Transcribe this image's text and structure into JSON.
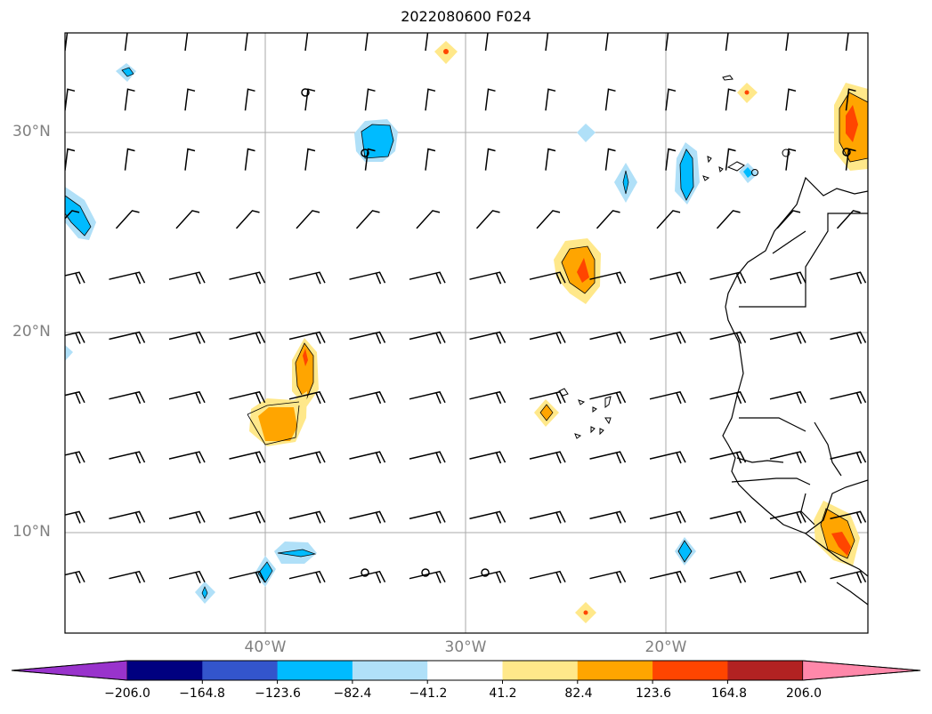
{
  "title": "2022080600 F024",
  "map": {
    "latitude_labels": [
      {
        "text": "30°N",
        "deg": 30
      },
      {
        "text": "20°N",
        "deg": 20
      },
      {
        "text": "10°N",
        "deg": 10
      }
    ],
    "longitude_labels": [
      {
        "text": "40°W",
        "deg": -40
      },
      {
        "text": "30°W",
        "deg": -30
      },
      {
        "text": "20°W",
        "deg": -20
      }
    ],
    "extent_deg": {
      "lon": [
        -50,
        -10
      ],
      "lat": [
        5,
        35
      ]
    },
    "gridlines": true
  },
  "colorbar": {
    "labels": [
      "−206.0",
      "−164.8",
      "−123.6",
      "−82.4",
      "−41.2",
      "41.2",
      "82.4",
      "123.6",
      "164.8",
      "206.0"
    ],
    "colors": [
      "#9933cc",
      "#000080",
      "#3355cc",
      "#00bbff",
      "#b0e0f8",
      "#ffffff",
      "#ffe88a",
      "#ffa500",
      "#ff4500",
      "#b22222",
      "#ff88aa"
    ],
    "extend": "both"
  }
}
